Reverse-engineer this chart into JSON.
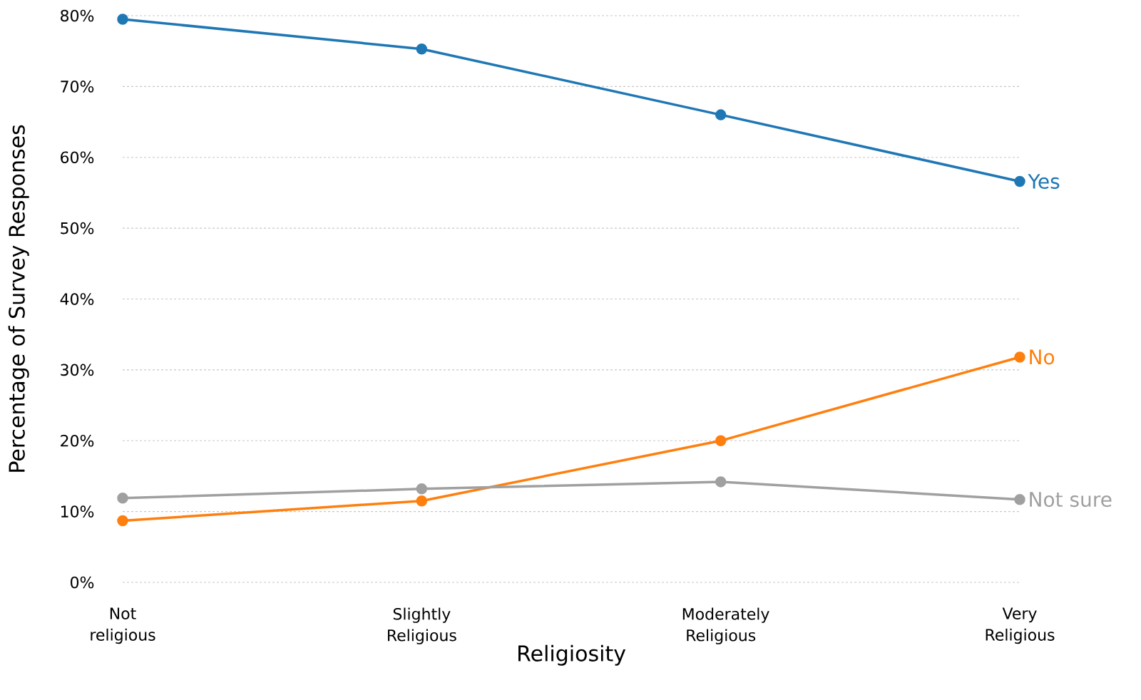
{
  "chart_data": {
    "type": "line",
    "xlabel": "Religiosity",
    "ylabel": "Percentage of Survey Responses",
    "categories": [
      "Not religious",
      "Slightly Religious",
      "Moderately Religious",
      "Very Religious"
    ],
    "series": [
      {
        "name": "Yes",
        "color": "#1f77b4",
        "values": [
          79.5,
          75.3,
          66.0,
          56.6
        ]
      },
      {
        "name": "No",
        "color": "#ff7f0e",
        "values": [
          8.7,
          11.5,
          20.0,
          31.8
        ]
      },
      {
        "name": "Not sure",
        "color": "#a0a0a0",
        "values": [
          11.9,
          13.2,
          14.2,
          11.7
        ]
      }
    ],
    "ylim": [
      0,
      80
    ],
    "yticks": [
      {
        "value": 0,
        "label": "0%"
      },
      {
        "value": 10,
        "label": "10%"
      },
      {
        "value": 20,
        "label": "20%"
      },
      {
        "value": 30,
        "label": "30%"
      },
      {
        "value": 40,
        "label": "40%"
      },
      {
        "value": 50,
        "label": "50%"
      },
      {
        "value": 60,
        "label": "60%"
      },
      {
        "value": 70,
        "label": "70%"
      },
      {
        "value": 80,
        "label": "80%"
      }
    ],
    "grid": "y",
    "marker": "circle",
    "line_style": "solid"
  }
}
